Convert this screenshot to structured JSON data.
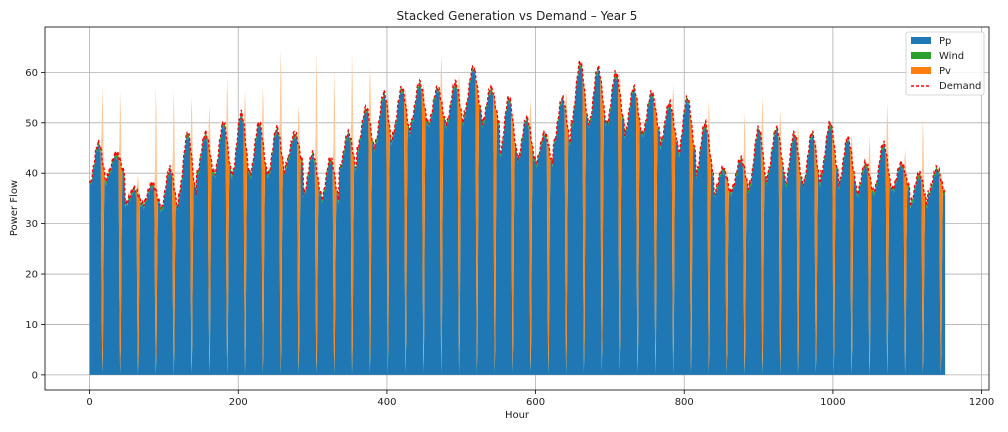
{
  "chart_data": {
    "type": "area",
    "title": "Stacked Generation vs Demand – Year 5",
    "xlabel": "Hour",
    "ylabel": "Power Flow",
    "xlim": [
      -60,
      1210
    ],
    "ylim": [
      -3,
      69
    ],
    "xticks": [
      0,
      200,
      400,
      600,
      800,
      1000,
      1200
    ],
    "yticks": [
      0,
      10,
      20,
      30,
      40,
      50,
      60
    ],
    "grid": true,
    "legend_position": "top-right",
    "hours_total": 1152,
    "hours_per_day": 24,
    "days": 48,
    "daily_peak_demand": [
      46,
      44,
      37,
      38,
      41,
      48,
      48,
      50,
      52,
      50,
      49,
      48,
      44,
      43,
      48,
      53,
      56,
      57,
      58,
      57,
      58,
      61,
      57,
      55,
      51,
      48,
      55,
      62,
      61,
      60,
      57,
      56,
      54,
      55,
      50,
      41,
      43,
      49,
      49,
      48,
      48,
      50,
      47,
      42,
      46,
      42,
      40,
      41
    ],
    "daily_trough_demand": [
      38,
      40,
      34,
      34,
      33,
      36,
      40,
      40,
      40,
      40,
      40,
      42,
      36,
      35,
      41,
      45,
      46,
      48,
      50,
      50,
      50,
      52,
      50,
      44,
      43,
      42,
      46,
      50,
      50,
      50,
      48,
      48,
      46,
      44,
      40,
      36,
      37,
      38,
      40,
      38,
      38,
      40,
      38,
      36,
      37,
      37,
      34,
      36
    ],
    "daily_pv_peak": [
      58,
      57,
      40,
      59,
      58,
      56,
      54,
      60,
      57,
      58,
      66,
      54,
      66,
      62,
      65,
      62,
      57,
      57,
      58,
      64,
      60,
      58,
      55,
      52,
      55,
      48,
      57,
      58,
      58,
      60,
      55,
      55,
      58,
      50,
      55,
      41,
      53,
      56,
      53,
      50,
      47,
      48,
      48,
      48,
      55,
      45,
      52,
      40
    ],
    "series": [
      {
        "name": "Pp",
        "color": "#1f77b4",
        "legend_label": "Pp"
      },
      {
        "name": "Wind",
        "color": "#2ca02c",
        "legend_label": "Wind"
      },
      {
        "name": "Pv",
        "color": "#ff7f0e",
        "legend_label": "Pv"
      },
      {
        "name": "Demand",
        "color": "#ff0000",
        "legend_label": "Demand",
        "style": "dashed"
      }
    ],
    "pv_excess_color": "#ffc89a"
  }
}
